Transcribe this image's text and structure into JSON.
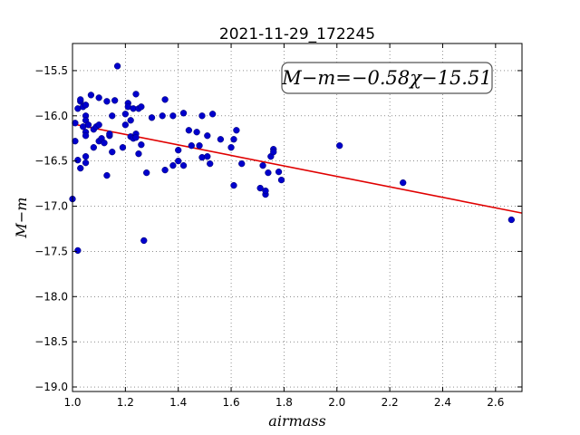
{
  "chart_data": {
    "type": "scatter",
    "title": "2021-11-29_172245",
    "xlabel": "airmass",
    "ylabel": "M−m",
    "xlim": [
      1.0,
      2.7
    ],
    "ylim": [
      -19.05,
      -15.2
    ],
    "grid": true,
    "xticks": [
      1.0,
      1.2,
      1.4,
      1.6,
      1.8,
      2.0,
      2.2,
      2.4,
      2.6
    ],
    "xtick_labels": [
      "1.0",
      "1.2",
      "1.4",
      "1.6",
      "1.8",
      "2.0",
      "2.2",
      "2.4",
      "2.6"
    ],
    "yticks": [
      -15.5,
      -16.0,
      -16.5,
      -17.0,
      -17.5,
      -18.0,
      -18.5,
      -19.0
    ],
    "ytick_labels": [
      "−15.5",
      "−16.0",
      "−16.5",
      "−17.0",
      "−17.5",
      "−18.0",
      "−18.5",
      "−19.0"
    ],
    "annotation": "M−m=−0.58χ−15.51",
    "fit": {
      "slope": -0.58,
      "intercept": -15.51,
      "color": "#e00000"
    },
    "point_color": "#0000cc",
    "points": [
      [
        1.0,
        -16.92
      ],
      [
        1.01,
        -16.28
      ],
      [
        1.01,
        -16.08
      ],
      [
        1.02,
        -17.49
      ],
      [
        1.02,
        -16.49
      ],
      [
        1.02,
        -15.92
      ],
      [
        1.03,
        -15.84
      ],
      [
        1.03,
        -15.82
      ],
      [
        1.03,
        -16.58
      ],
      [
        1.04,
        -15.9
      ],
      [
        1.04,
        -16.12
      ],
      [
        1.05,
        -16.18
      ],
      [
        1.05,
        -16.22
      ],
      [
        1.05,
        -16.0
      ],
      [
        1.05,
        -16.05
      ],
      [
        1.05,
        -15.88
      ],
      [
        1.05,
        -16.45
      ],
      [
        1.05,
        -16.52
      ],
      [
        1.06,
        -16.1
      ],
      [
        1.07,
        -15.77
      ],
      [
        1.08,
        -16.35
      ],
      [
        1.08,
        -16.15
      ],
      [
        1.09,
        -16.12
      ],
      [
        1.1,
        -16.1
      ],
      [
        1.1,
        -16.28
      ],
      [
        1.1,
        -15.8
      ],
      [
        1.11,
        -16.25
      ],
      [
        1.12,
        -16.3
      ],
      [
        1.13,
        -15.84
      ],
      [
        1.13,
        -16.66
      ],
      [
        1.14,
        -16.22
      ],
      [
        1.14,
        -16.2
      ],
      [
        1.15,
        -16.4
      ],
      [
        1.15,
        -16.0
      ],
      [
        1.16,
        -15.83
      ],
      [
        1.17,
        -15.45
      ],
      [
        1.19,
        -16.35
      ],
      [
        1.2,
        -16.1
      ],
      [
        1.2,
        -15.98
      ],
      [
        1.21,
        -15.86
      ],
      [
        1.21,
        -15.9
      ],
      [
        1.22,
        -16.23
      ],
      [
        1.22,
        -16.05
      ],
      [
        1.23,
        -16.25
      ],
      [
        1.23,
        -15.92
      ],
      [
        1.24,
        -16.2
      ],
      [
        1.24,
        -15.76
      ],
      [
        1.24,
        -16.24
      ],
      [
        1.25,
        -15.92
      ],
      [
        1.25,
        -16.42
      ],
      [
        1.26,
        -16.32
      ],
      [
        1.26,
        -15.9
      ],
      [
        1.27,
        -17.38
      ],
      [
        1.28,
        -16.63
      ],
      [
        1.3,
        -16.02
      ],
      [
        1.34,
        -16.0
      ],
      [
        1.35,
        -15.82
      ],
      [
        1.35,
        -16.6
      ],
      [
        1.38,
        -16.55
      ],
      [
        1.38,
        -16.0
      ],
      [
        1.4,
        -16.5
      ],
      [
        1.4,
        -16.38
      ],
      [
        1.42,
        -16.55
      ],
      [
        1.42,
        -15.97
      ],
      [
        1.44,
        -16.16
      ],
      [
        1.45,
        -16.33
      ],
      [
        1.47,
        -16.18
      ],
      [
        1.48,
        -16.33
      ],
      [
        1.49,
        -16.0
      ],
      [
        1.49,
        -16.46
      ],
      [
        1.51,
        -16.45
      ],
      [
        1.51,
        -16.22
      ],
      [
        1.52,
        -16.53
      ],
      [
        1.53,
        -15.98
      ],
      [
        1.56,
        -16.26
      ],
      [
        1.6,
        -16.35
      ],
      [
        1.61,
        -16.77
      ],
      [
        1.61,
        -16.26
      ],
      [
        1.62,
        -16.16
      ],
      [
        1.64,
        -16.53
      ],
      [
        1.71,
        -16.8
      ],
      [
        1.72,
        -16.55
      ],
      [
        1.73,
        -16.87
      ],
      [
        1.73,
        -16.83
      ],
      [
        1.74,
        -16.63
      ],
      [
        1.75,
        -16.45
      ],
      [
        1.76,
        -16.37
      ],
      [
        1.76,
        -16.4
      ],
      [
        1.78,
        -16.62
      ],
      [
        1.79,
        -16.71
      ],
      [
        2.01,
        -16.33
      ],
      [
        2.25,
        -16.74
      ],
      [
        2.66,
        -17.15
      ]
    ]
  }
}
